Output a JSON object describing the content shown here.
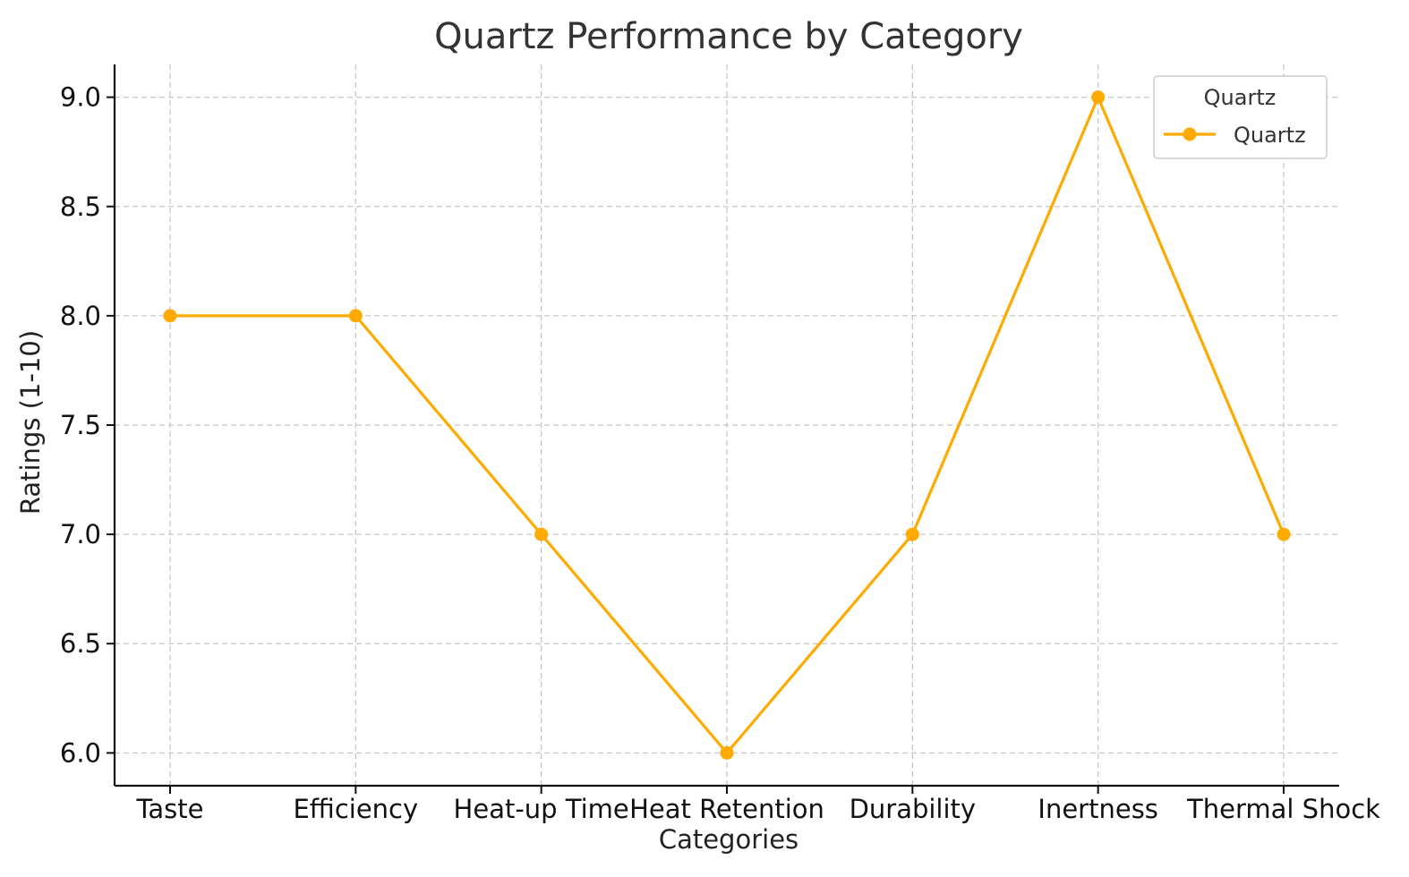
{
  "chart_data": {
    "type": "line",
    "title": "Quartz Performance by Category",
    "xlabel": "Categories",
    "ylabel": "Ratings (1-10)",
    "categories": [
      "Taste",
      "Efficiency",
      "Heat-up Time",
      "Heat Retention",
      "Durability",
      "Inertness",
      "Thermal Shock"
    ],
    "series": [
      {
        "name": "Quartz",
        "values": [
          8,
          8,
          7,
          6,
          7,
          9,
          7
        ],
        "color": "#FFAA00",
        "marker": "circle"
      }
    ],
    "ylim": [
      5.85,
      9.15
    ],
    "yticks": [
      6.0,
      6.5,
      7.0,
      7.5,
      8.0,
      8.5,
      9.0
    ],
    "ytick_labels": [
      "6.0",
      "6.5",
      "7.0",
      "7.5",
      "8.0",
      "8.5",
      "9.0"
    ],
    "grid": true,
    "legend": {
      "title": "Quartz",
      "placement": "top-right"
    }
  }
}
